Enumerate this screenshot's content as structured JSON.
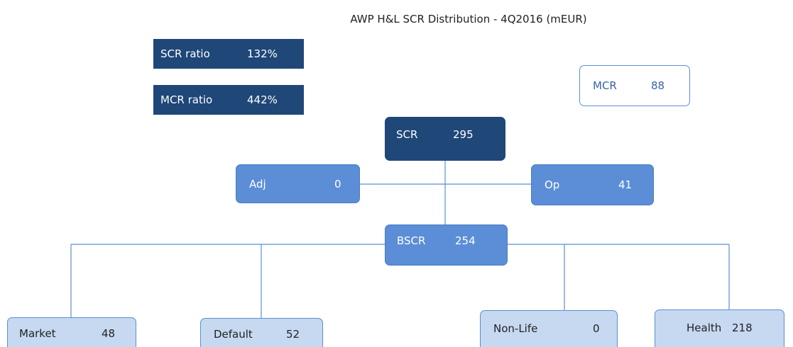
{
  "title": "AWP H&L SCR Distribution - 4Q2016 (mEUR)",
  "ratios": [
    {
      "label": "SCR ratio",
      "value": "132%"
    },
    {
      "label": "MCR ratio",
      "value": "442%"
    }
  ],
  "nodes": [
    {
      "label": "MCR",
      "value": 88
    },
    {
      "label": "SCR",
      "value": 295
    },
    {
      "label": "Adj",
      "value": 0
    },
    {
      "label": "Op",
      "value": 41
    },
    {
      "label": "BSCR",
      "value": 254
    },
    {
      "label": "Market",
      "value": 48
    },
    {
      "label": "Default",
      "value": 52
    },
    {
      "label": "Non-Life",
      "value": 0
    },
    {
      "label": "Health",
      "value": 218
    }
  ]
}
